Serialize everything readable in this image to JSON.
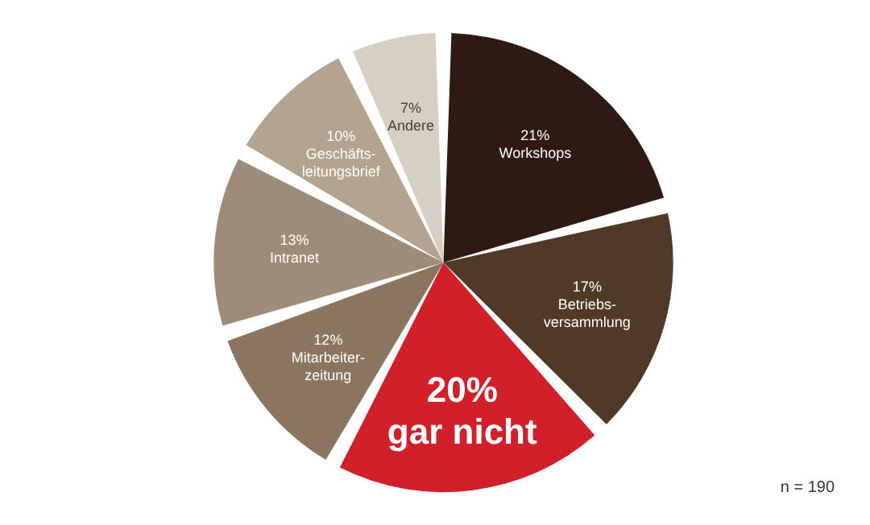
{
  "chart_data": {
    "type": "pie",
    "categories": [
      "Workshops",
      "Betriebs-\nversammlung",
      "gar nicht",
      "Mitarbeiter-\nzeitung",
      "Intranet",
      "Geschäfts-\nleitungsbrief",
      "Andere"
    ],
    "values": [
      21,
      17,
      20,
      12,
      13,
      10,
      7
    ],
    "value_labels": [
      "21%",
      "17%",
      "20%",
      "12%",
      "13%",
      "10%",
      "7%"
    ],
    "colors": [
      "#2e1a10",
      "#4f3a28",
      "#d0202a",
      "#8a7560",
      "#9f8c78",
      "#b3a48f",
      "#d8cfc3"
    ],
    "annotations": [
      "n = 190"
    ],
    "legend": false
  }
}
